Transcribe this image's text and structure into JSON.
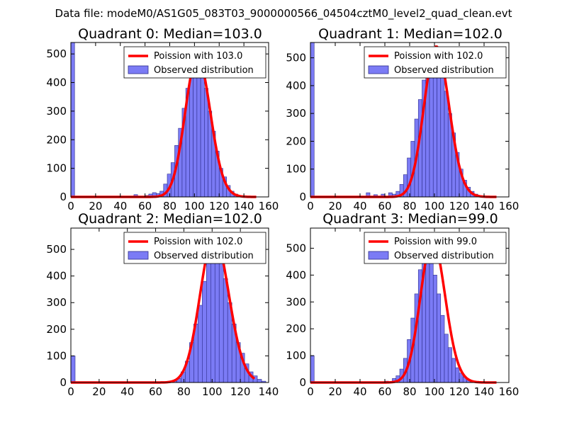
{
  "figure_title": "Data file: modeM0/AS1G05_083T03_9000000566_04504cztM0_level2_quad_clean.evt",
  "colors": {
    "bars": "#7b7bf5",
    "bar_edge": "#2d2d8c",
    "poisson": "#ff0000"
  },
  "chart_data": [
    {
      "type": "bar",
      "title": "Quadrant 0: Median=103.0",
      "median": 103.0,
      "xlim": [
        0,
        160
      ],
      "ylim": [
        0,
        540
      ],
      "xticks": [
        0,
        20,
        40,
        60,
        80,
        100,
        120,
        140,
        160
      ],
      "yticks": [
        0,
        100,
        200,
        300,
        400,
        500
      ],
      "legend": [
        "Poission with 103.0",
        "Observed distribution"
      ],
      "bin_width": 3,
      "bins": [
        0,
        3,
        6,
        51,
        60,
        63,
        66,
        69,
        72,
        75,
        78,
        81,
        84,
        87,
        90,
        93,
        96,
        99,
        102,
        105,
        108,
        111,
        114,
        117,
        120,
        123,
        126,
        129,
        132,
        135,
        138
      ],
      "values": [
        540,
        2,
        2,
        8,
        5,
        10,
        15,
        12,
        20,
        45,
        80,
        120,
        180,
        240,
        310,
        380,
        440,
        480,
        490,
        440,
        380,
        300,
        230,
        160,
        100,
        70,
        40,
        20,
        10,
        5,
        2
      ]
    },
    {
      "type": "bar",
      "title": "Quadrant 1: Median=102.0",
      "median": 102.0,
      "xlim": [
        0,
        160
      ],
      "ylim": [
        0,
        555
      ],
      "xticks": [
        0,
        20,
        40,
        60,
        80,
        100,
        120,
        140,
        160
      ],
      "yticks": [
        0,
        100,
        200,
        300,
        400,
        500
      ],
      "legend": [
        "Poission with 102.0",
        "Observed distribution"
      ],
      "bin_width": 3,
      "bins": [
        0,
        3,
        45,
        51,
        57,
        63,
        66,
        69,
        72,
        75,
        78,
        81,
        84,
        87,
        90,
        93,
        96,
        99,
        102,
        105,
        108,
        111,
        114,
        117,
        120,
        123,
        126,
        129,
        132,
        135
      ],
      "values": [
        555,
        3,
        15,
        8,
        10,
        15,
        10,
        20,
        45,
        80,
        140,
        200,
        280,
        350,
        420,
        480,
        520,
        540,
        510,
        450,
        380,
        300,
        230,
        160,
        100,
        60,
        35,
        20,
        10,
        5
      ]
    },
    {
      "type": "bar",
      "title": "Quadrant 2: Median=102.0",
      "median": 102.0,
      "xlim": [
        0,
        140
      ],
      "ylim": [
        0,
        580
      ],
      "xticks": [
        0,
        20,
        40,
        60,
        80,
        100,
        120,
        140
      ],
      "yticks": [
        0,
        100,
        200,
        300,
        400,
        500
      ],
      "legend": [
        "Poission with 102.0",
        "Observed distribution"
      ],
      "bin_width": 3,
      "bins": [
        0,
        3,
        72,
        75,
        78,
        81,
        84,
        87,
        90,
        93,
        96,
        99,
        102,
        105,
        108,
        111,
        114,
        117,
        120,
        123,
        126,
        129,
        132,
        135
      ],
      "values": [
        100,
        2,
        5,
        15,
        40,
        80,
        150,
        220,
        290,
        380,
        470,
        550,
        540,
        480,
        390,
        300,
        220,
        150,
        110,
        70,
        40,
        25,
        12,
        5
      ]
    },
    {
      "type": "bar",
      "title": "Quadrant 3: Median=99.0",
      "median": 99.0,
      "xlim": [
        0,
        160
      ],
      "ylim": [
        0,
        575
      ],
      "xticks": [
        0,
        20,
        40,
        60,
        80,
        100,
        120,
        140,
        160
      ],
      "yticks": [
        0,
        100,
        200,
        300,
        400,
        500
      ],
      "legend": [
        "Poission with 99.0",
        "Observed distribution"
      ],
      "bin_width": 3,
      "bins": [
        0,
        3,
        60,
        66,
        69,
        72,
        75,
        78,
        81,
        84,
        87,
        90,
        93,
        96,
        99,
        102,
        105,
        108,
        111,
        114,
        117,
        120,
        123,
        126,
        129,
        132,
        135
      ],
      "values": [
        100,
        2,
        5,
        15,
        25,
        50,
        90,
        160,
        240,
        330,
        420,
        490,
        530,
        480,
        400,
        330,
        250,
        180,
        130,
        90,
        55,
        35,
        20,
        10,
        5,
        3,
        2
      ]
    }
  ]
}
